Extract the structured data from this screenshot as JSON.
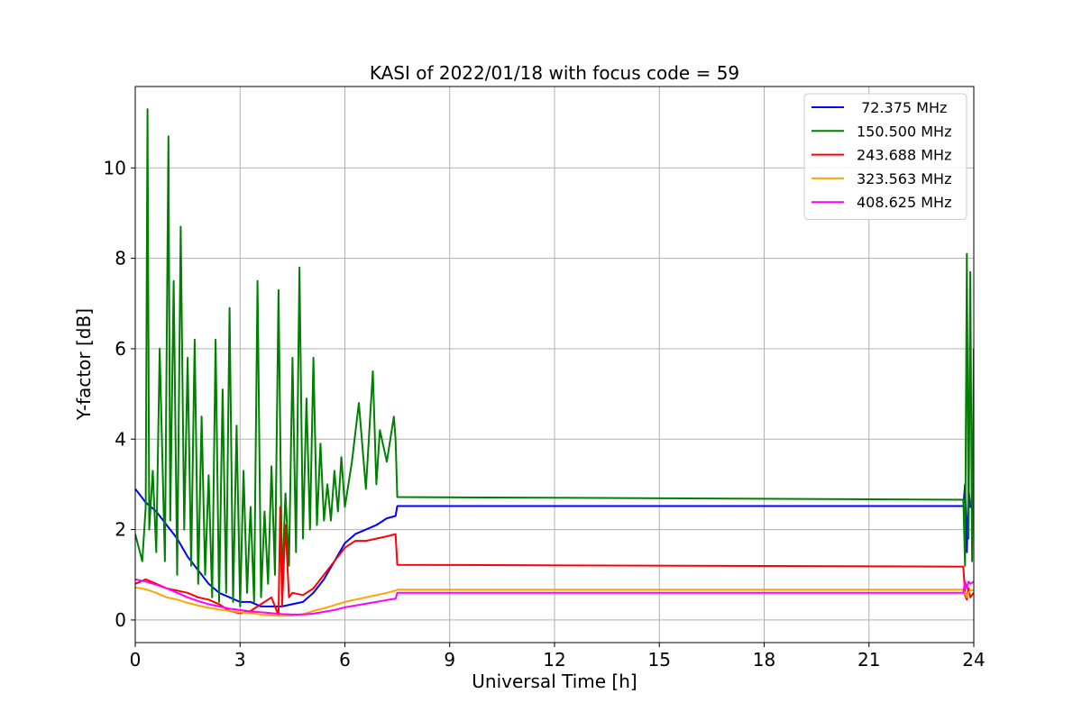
{
  "chart_data": {
    "type": "line",
    "title": "KASI of 2022/01/18 with focus code = 59",
    "xlabel": "Universal Time [h]",
    "ylabel": "Y-factor [dB]",
    "xlim": [
      0,
      24
    ],
    "ylim": [
      -0.5,
      11.8
    ],
    "xticks": [
      0,
      3,
      6,
      9,
      12,
      15,
      18,
      21,
      24
    ],
    "yticks": [
      0,
      2,
      4,
      6,
      8,
      10
    ],
    "grid": true,
    "legend_position": "top-right",
    "series": [
      {
        "name": " 72.375 MHz",
        "color": "#0000ff",
        "x": [
          0,
          0.3,
          0.6,
          0.9,
          1.2,
          1.5,
          1.8,
          2.1,
          2.4,
          2.7,
          3.0,
          3.3,
          3.6,
          3.9,
          4.2,
          4.5,
          4.8,
          5.1,
          5.4,
          5.7,
          6.0,
          6.3,
          6.6,
          6.9,
          7.2,
          7.45,
          7.5,
          23.7,
          23.75,
          23.8,
          23.85,
          23.9,
          24.0
        ],
        "y": [
          2.9,
          2.6,
          2.4,
          2.1,
          1.8,
          1.4,
          1.1,
          0.8,
          0.6,
          0.5,
          0.4,
          0.4,
          0.3,
          0.3,
          0.3,
          0.35,
          0.4,
          0.6,
          0.9,
          1.3,
          1.7,
          1.9,
          2.0,
          2.1,
          2.25,
          2.3,
          2.52,
          2.52,
          3.0,
          1.5,
          2.9,
          2.5,
          2.5
        ]
      },
      {
        "name": "150.500 MHz",
        "color": "#008000",
        "x": [
          0,
          0.2,
          0.3,
          0.35,
          0.4,
          0.5,
          0.6,
          0.7,
          0.85,
          0.95,
          1.0,
          1.1,
          1.2,
          1.3,
          1.4,
          1.5,
          1.6,
          1.7,
          1.8,
          1.9,
          2.0,
          2.1,
          2.2,
          2.3,
          2.4,
          2.5,
          2.6,
          2.7,
          2.8,
          2.9,
          3.0,
          3.1,
          3.2,
          3.3,
          3.4,
          3.5,
          3.6,
          3.7,
          3.8,
          3.9,
          4.0,
          4.1,
          4.2,
          4.3,
          4.4,
          4.5,
          4.6,
          4.7,
          4.8,
          4.9,
          5.0,
          5.1,
          5.2,
          5.3,
          5.4,
          5.5,
          5.6,
          5.7,
          5.8,
          5.9,
          6.0,
          6.2,
          6.4,
          6.6,
          6.8,
          6.9,
          7.0,
          7.2,
          7.4,
          7.45,
          7.5,
          23.7,
          23.75,
          23.8,
          23.85,
          23.9,
          23.95,
          24.0
        ],
        "y": [
          1.9,
          1.3,
          2.5,
          11.3,
          2.0,
          3.3,
          1.5,
          6.0,
          1.3,
          10.7,
          2.2,
          7.5,
          1.0,
          8.7,
          2.0,
          5.8,
          1.2,
          6.2,
          0.8,
          4.5,
          1.0,
          3.2,
          0.5,
          6.2,
          0.4,
          5.1,
          0.6,
          6.9,
          0.4,
          4.3,
          0.3,
          3.3,
          0.6,
          2.5,
          0.4,
          7.5,
          0.5,
          2.4,
          0.8,
          3.4,
          1.0,
          7.3,
          0.8,
          2.8,
          1.2,
          5.8,
          1.5,
          7.8,
          1.8,
          4.9,
          2.0,
          5.8,
          2.1,
          3.9,
          2.2,
          3.0,
          2.2,
          3.3,
          2.4,
          3.6,
          2.5,
          3.5,
          4.8,
          2.9,
          5.5,
          3.0,
          4.2,
          3.5,
          4.5,
          4.0,
          2.72,
          2.66,
          1.2,
          8.1,
          1.8,
          7.7,
          1.3,
          6.0
        ]
      },
      {
        "name": "243.688 MHz",
        "color": "#ff0000",
        "x": [
          0,
          0.3,
          0.6,
          0.9,
          1.2,
          1.5,
          1.8,
          2.1,
          2.4,
          2.7,
          3.0,
          3.3,
          3.6,
          3.9,
          4.1,
          4.15,
          4.2,
          4.3,
          4.4,
          4.5,
          4.8,
          5.1,
          5.4,
          5.7,
          6.0,
          6.3,
          6.6,
          6.9,
          7.2,
          7.45,
          7.5,
          23.7,
          23.75,
          23.8,
          23.85,
          23.9,
          24.0
        ],
        "y": [
          0.8,
          0.9,
          0.8,
          0.7,
          0.65,
          0.6,
          0.5,
          0.45,
          0.35,
          0.2,
          0.15,
          0.2,
          0.35,
          0.5,
          0.1,
          2.5,
          0.3,
          2.1,
          0.5,
          0.6,
          0.55,
          0.7,
          1.0,
          1.3,
          1.6,
          1.75,
          1.75,
          1.8,
          1.85,
          1.9,
          1.22,
          1.18,
          0.55,
          0.45,
          0.7,
          0.5,
          0.6
        ]
      },
      {
        "name": "323.563 MHz",
        "color": "#ffa500",
        "x": [
          0,
          0.3,
          0.6,
          0.9,
          1.2,
          1.5,
          1.8,
          2.1,
          2.4,
          2.7,
          3.0,
          3.3,
          3.6,
          3.9,
          4.2,
          4.5,
          4.8,
          5.1,
          5.4,
          5.7,
          6.0,
          6.3,
          6.6,
          6.9,
          7.2,
          7.45,
          7.5,
          23.7,
          23.75,
          23.8,
          23.85,
          23.9,
          24.0
        ],
        "y": [
          0.72,
          0.68,
          0.6,
          0.5,
          0.45,
          0.38,
          0.32,
          0.27,
          0.23,
          0.2,
          0.17,
          0.15,
          0.12,
          0.1,
          0.09,
          0.1,
          0.13,
          0.2,
          0.26,
          0.33,
          0.4,
          0.45,
          0.5,
          0.55,
          0.6,
          0.65,
          0.67,
          0.67,
          0.6,
          0.5,
          0.6,
          0.65,
          0.66
        ]
      },
      {
        "name": "408.625 MHz",
        "color": "#ff00ff",
        "x": [
          0,
          0.3,
          0.6,
          0.9,
          1.2,
          1.5,
          1.8,
          2.1,
          2.4,
          2.7,
          3.0,
          3.3,
          3.6,
          3.9,
          4.2,
          4.5,
          4.8,
          5.1,
          5.4,
          5.7,
          6.0,
          6.3,
          6.6,
          6.9,
          7.2,
          7.45,
          7.5,
          23.7,
          23.75,
          23.8,
          23.85,
          23.9,
          24.0
        ],
        "y": [
          0.9,
          0.85,
          0.78,
          0.7,
          0.6,
          0.5,
          0.42,
          0.35,
          0.3,
          0.25,
          0.22,
          0.19,
          0.17,
          0.15,
          0.13,
          0.12,
          0.12,
          0.14,
          0.18,
          0.22,
          0.28,
          0.32,
          0.36,
          0.4,
          0.44,
          0.47,
          0.6,
          0.6,
          0.85,
          0.7,
          0.85,
          0.8,
          0.85
        ]
      }
    ]
  }
}
